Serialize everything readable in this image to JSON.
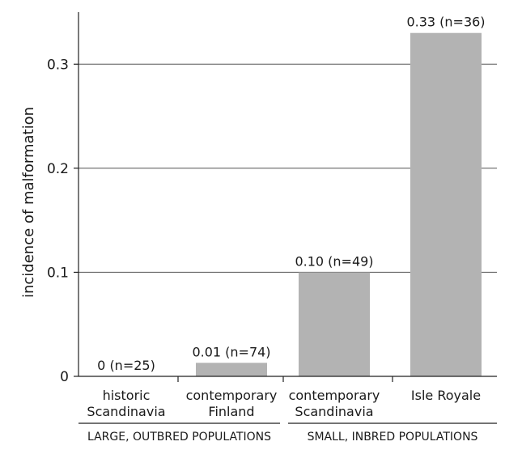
{
  "chart_data": {
    "type": "bar",
    "title": "",
    "xlabel": "",
    "ylabel": "incidence of malformation",
    "ylim": [
      0,
      0.35
    ],
    "yticks": [
      0,
      0.1,
      0.2,
      0.3
    ],
    "ytick_labels": [
      "0",
      "0.1",
      "0.2",
      "0.3"
    ],
    "grid": true,
    "legend": "none",
    "bar_color": "#b3b3b3",
    "grid_color": "#555555",
    "categories": [
      [
        "historic",
        "Scandinavia"
      ],
      [
        "contemporary",
        "Finland"
      ],
      [
        "contemporary",
        "Scandinavia"
      ],
      [
        "Isle Royale"
      ]
    ],
    "values": [
      0,
      0.013,
      0.1,
      0.33
    ],
    "data_labels": [
      "0 (n=25)",
      "0.01 (n=74)",
      "0.10 (n=49)",
      "0.33 (n=36)"
    ],
    "groups": [
      {
        "label": "LARGE, OUTBRED POPULATIONS",
        "categories": [
          0,
          1
        ]
      },
      {
        "label": "SMALL, INBRED POPULATIONS",
        "categories": [
          2,
          3
        ]
      }
    ]
  }
}
